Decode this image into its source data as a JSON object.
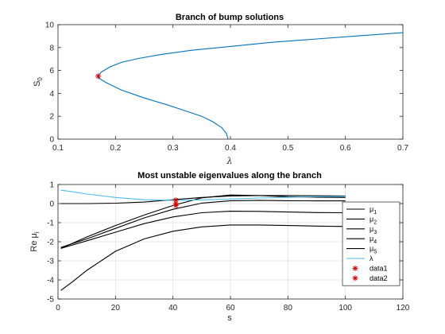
{
  "chart_data": [
    {
      "type": "line",
      "title": "Branch of bump solutions",
      "xlabel": "λ",
      "ylabel": "S",
      "ylabel_sub": "0",
      "xlim": [
        0.1,
        0.7
      ],
      "ylim": [
        0,
        10
      ],
      "xticks": [
        "0.1",
        "0.2",
        "0.3",
        "0.4",
        "0.5",
        "0.6",
        "0.7"
      ],
      "yticks": [
        "0",
        "2",
        "4",
        "6",
        "8",
        "10"
      ],
      "grid": false,
      "series": [
        {
          "color": "#0072bd",
          "x": [
            0.396,
            0.393,
            0.385,
            0.37,
            0.35,
            0.32,
            0.29,
            0.25,
            0.21,
            0.185,
            0.172,
            0.17,
            0.175,
            0.19,
            0.21,
            0.24,
            0.28,
            0.33,
            0.4,
            0.47,
            0.55,
            0.63,
            0.7
          ],
          "y": [
            0.0,
            0.5,
            1.0,
            1.5,
            2.0,
            2.5,
            3.0,
            3.6,
            4.3,
            4.9,
            5.3,
            5.5,
            5.85,
            6.3,
            6.7,
            7.05,
            7.4,
            7.75,
            8.1,
            8.45,
            8.75,
            9.05,
            9.3
          ]
        }
      ],
      "markers": [
        {
          "x": 0.17,
          "y": 5.5,
          "symbol": "*",
          "color": "#e00000"
        }
      ]
    },
    {
      "type": "line",
      "title": "Most unstable eigenvalues along the branch",
      "xlabel": "s",
      "ylabel": "Re μ",
      "ylabel_sub": "i",
      "xlim": [
        0,
        120
      ],
      "ylim": [
        -5,
        1
      ],
      "xticks": [
        "0",
        "20",
        "40",
        "60",
        "80",
        "100",
        "120"
      ],
      "yticks": [
        "-5",
        "-4",
        "-3",
        "-2",
        "-1",
        "0",
        "1"
      ],
      "grid": true,
      "legend_position": "bottom-right",
      "series": [
        {
          "name": "μ",
          "sub": "1",
          "color": "#000000",
          "x": [
            1,
            10,
            20,
            30,
            40,
            50,
            60,
            70,
            80,
            90,
            100
          ],
          "y": [
            0.0,
            0.0,
            0.02,
            0.08,
            0.2,
            0.32,
            0.4,
            0.42,
            0.42,
            0.41,
            0.4
          ]
        },
        {
          "name": "μ",
          "sub": "2",
          "color": "#000000",
          "x": [
            1,
            10,
            20,
            30,
            40,
            50,
            60,
            70,
            80,
            90,
            100
          ],
          "y": [
            -2.35,
            -1.75,
            -1.15,
            -0.6,
            -0.1,
            0.3,
            0.45,
            0.42,
            0.36,
            0.33,
            0.32
          ]
        },
        {
          "name": "μ",
          "sub": "3",
          "color": "#000000",
          "x": [
            1,
            10,
            20,
            30,
            40,
            50,
            60,
            70,
            80,
            90,
            100
          ],
          "y": [
            -2.3,
            -1.85,
            -1.3,
            -0.75,
            -0.3,
            0.02,
            0.15,
            0.17,
            0.15,
            0.14,
            0.14
          ]
        },
        {
          "name": "μ",
          "sub": "4",
          "color": "#000000",
          "x": [
            1,
            10,
            20,
            30,
            40,
            50,
            60,
            70,
            80,
            90,
            100
          ],
          "y": [
            -2.35,
            -1.95,
            -1.5,
            -1.05,
            -0.7,
            -0.48,
            -0.4,
            -0.41,
            -0.44,
            -0.47,
            -0.48
          ]
        },
        {
          "name": "μ",
          "sub": "5",
          "color": "#000000",
          "x": [
            1,
            5,
            10,
            20,
            30,
            40,
            50,
            60,
            70,
            80,
            90,
            100
          ],
          "y": [
            -4.55,
            -4.1,
            -3.5,
            -2.5,
            -1.85,
            -1.45,
            -1.22,
            -1.12,
            -1.12,
            -1.15,
            -1.18,
            -1.2
          ]
        },
        {
          "name": "λ",
          "sub": "",
          "color": "#4dbeee",
          "x": [
            1,
            5,
            10,
            20,
            30,
            40,
            50,
            60,
            70,
            80,
            90,
            100
          ],
          "y": [
            0.7,
            0.62,
            0.5,
            0.32,
            0.2,
            0.17,
            0.19,
            0.24,
            0.29,
            0.33,
            0.36,
            0.38
          ]
        }
      ],
      "marker_series": [
        {
          "name": "data1",
          "color": "#e00000",
          "symbol": "*",
          "points": [
            [
              41,
              0.18
            ]
          ]
        },
        {
          "name": "data2",
          "color": "#e00000",
          "symbol": "*",
          "points": [
            [
              41,
              0.0
            ],
            [
              41,
              -0.1
            ]
          ]
        }
      ]
    }
  ]
}
